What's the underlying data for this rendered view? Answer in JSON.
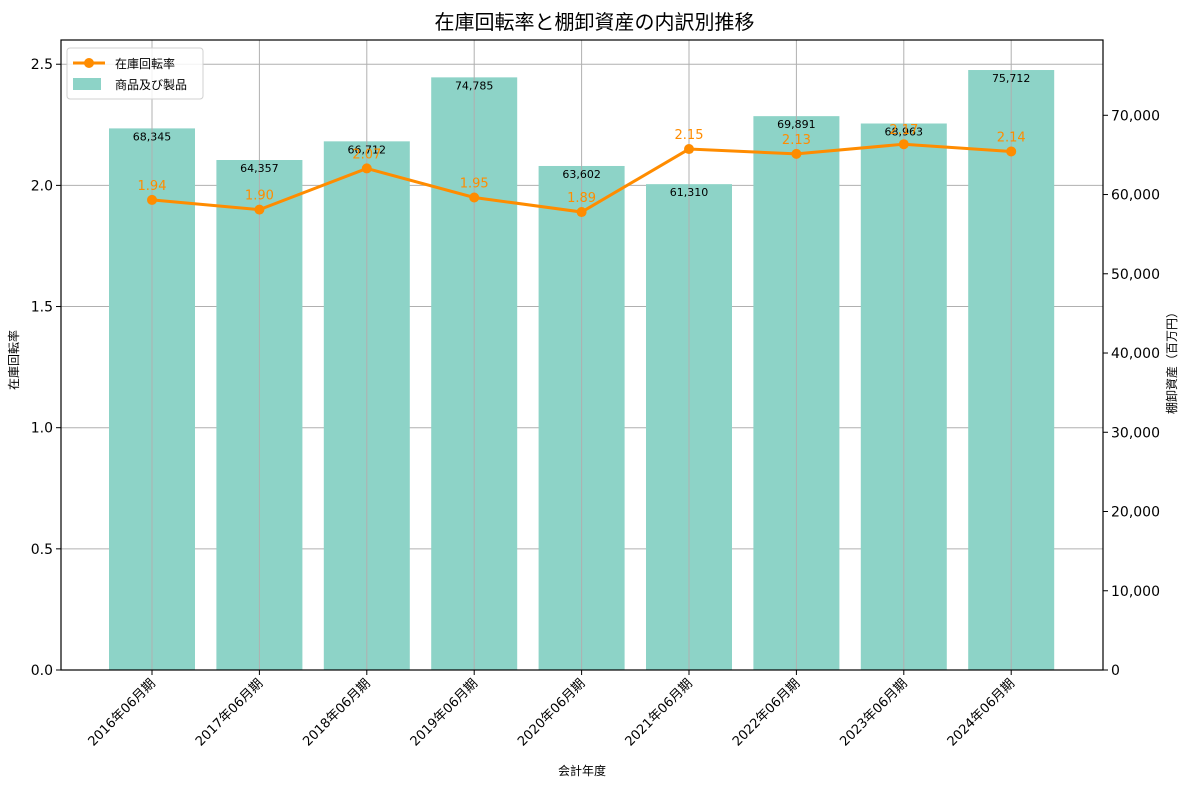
{
  "chart_data": {
    "type": "bar+line",
    "title": "在庫回転率と棚卸資産の内訳別推移",
    "xlabel": "会計年度",
    "ylabel_left": "在庫回転率",
    "ylabel_right": "棚卸資産（百万円）",
    "categories": [
      "2016年06月期",
      "2017年06月期",
      "2018年06月期",
      "2019年06月期",
      "2020年06月期",
      "2021年06月期",
      "2022年06月期",
      "2023年06月期",
      "2024年06月期"
    ],
    "series": [
      {
        "name": "商品及び製品",
        "type": "bar",
        "axis": "right",
        "color": "#8dd3c7",
        "values": [
          68345,
          64357,
          66712,
          74785,
          63602,
          61310,
          69891,
          68963,
          75712
        ],
        "labels": [
          "68,345",
          "64,357",
          "66,712",
          "74,785",
          "63,602",
          "61,310",
          "69,891",
          "68,963",
          "75,712"
        ]
      },
      {
        "name": "在庫回転率",
        "type": "line",
        "axis": "left",
        "color": "#ff8c00",
        "values": [
          1.94,
          1.9,
          2.07,
          1.95,
          1.89,
          2.15,
          2.13,
          2.17,
          2.14
        ],
        "labels": [
          "1.94",
          "1.90",
          "2.07",
          "1.95",
          "1.89",
          "2.15",
          "2.13",
          "2.17",
          "2.14"
        ]
      }
    ],
    "ylim_left": [
      0,
      2.6
    ],
    "yticks_left": [
      "0.0",
      "0.5",
      "1.0",
      "1.5",
      "2.0",
      "2.5"
    ],
    "ylim_right": [
      0,
      79500
    ],
    "yticks_right": [
      "0",
      "10,000",
      "20,000",
      "30,000",
      "40,000",
      "50,000",
      "60,000",
      "70,000"
    ],
    "grid": true,
    "legend_position": "upper left"
  }
}
